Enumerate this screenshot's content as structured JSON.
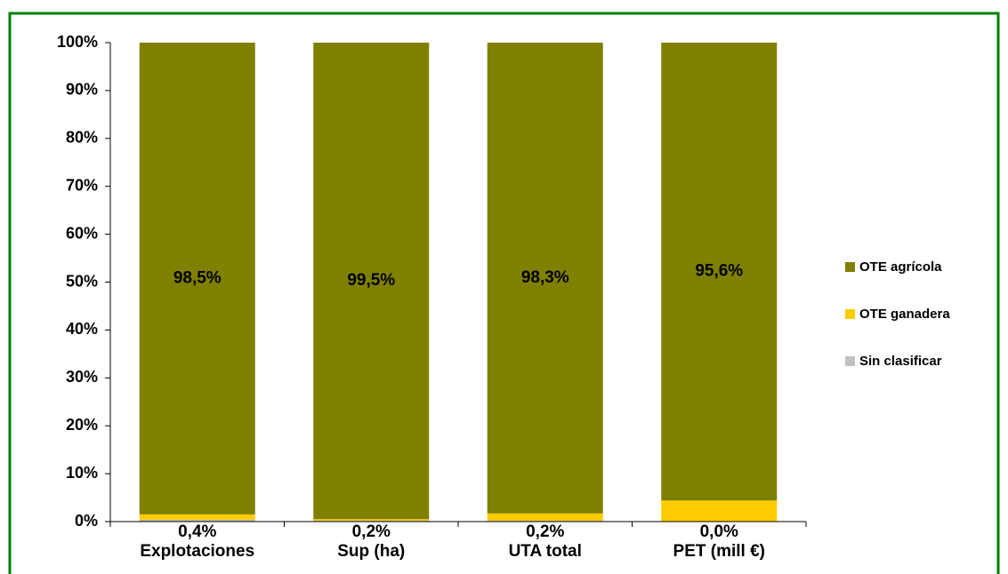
{
  "chart_data": {
    "type": "stacked_bar",
    "categories": [
      "Explotaciones",
      "Sup (ha)",
      "UTA total",
      "PET (mill €)"
    ],
    "series": [
      {
        "name": "Sin clasificar",
        "color": "#c0c0c0",
        "values": [
          0.4,
          0.2,
          0.2,
          0.0
        ],
        "value_labels": [
          "0,4%",
          "0,2%",
          "0,2%",
          "0,0%"
        ]
      },
      {
        "name": "OTE ganadera",
        "color": "#ffcc00",
        "values": [
          1.1,
          0.3,
          1.5,
          4.4
        ],
        "value_labels": [
          "1,1%",
          "0,3%",
          "1,5%",
          "4,4%"
        ]
      },
      {
        "name": "OTE agrícola",
        "color": "#808000",
        "values": [
          98.5,
          99.5,
          98.3,
          95.6
        ],
        "value_labels": [
          "98,5%",
          "99,5%",
          "98,3%",
          "95,6%"
        ]
      }
    ],
    "ylim": [
      0,
      100
    ],
    "yticks": [
      {
        "value": 0,
        "label": "0%"
      },
      {
        "value": 10,
        "label": "10%"
      },
      {
        "value": 20,
        "label": "20%"
      },
      {
        "value": 30,
        "label": "30%"
      },
      {
        "value": 40,
        "label": "40%"
      },
      {
        "value": 50,
        "label": "50%"
      },
      {
        "value": 60,
        "label": "60%"
      },
      {
        "value": 70,
        "label": "70%"
      },
      {
        "value": 80,
        "label": "80%"
      },
      {
        "value": 90,
        "label": "90%"
      },
      {
        "value": 100,
        "label": "100%"
      }
    ],
    "legend": "right"
  }
}
